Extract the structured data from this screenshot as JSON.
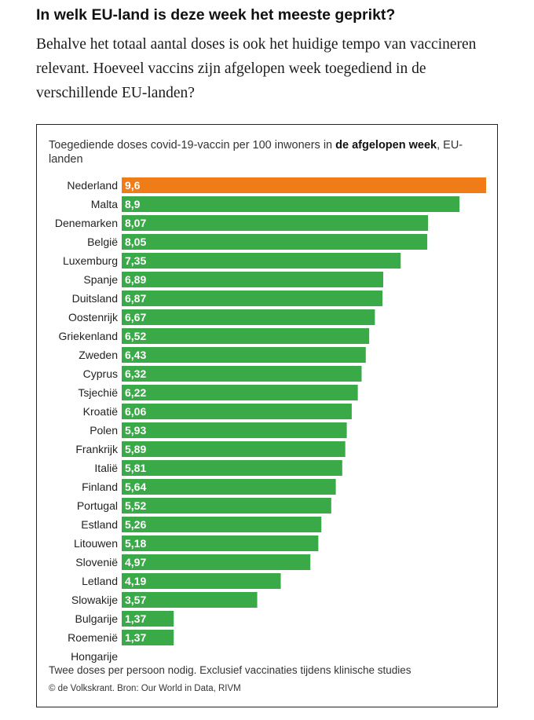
{
  "headline": "In welk EU-land is deze week het meeste geprikt?",
  "intro": "Behalve het totaal aantal doses is ook het huidige tempo van vaccineren relevant. Hoeveel vaccins zijn afgelopen week toegediend in de verschillende EU-landen?",
  "chart_data": {
    "type": "bar",
    "orientation": "horizontal",
    "title_prefix": "Toegediende doses covid-19-vaccin per 100 inwoners in ",
    "title_bold": "de afgelopen week",
    "title_suffix": ", EU-landen",
    "categories": [
      "Nederland",
      "Malta",
      "Denemarken",
      "België",
      "Luxemburg",
      "Spanje",
      "Duitsland",
      "Oostenrijk",
      "Griekenland",
      "Zweden",
      "Cyprus",
      "Tsjechië",
      "Kroatië",
      "Polen",
      "Frankrijk",
      "Italië",
      "Finland",
      "Portugal",
      "Estland",
      "Litouwen",
      "Slovenië",
      "Letland",
      "Slowakije",
      "Bulgarije",
      "Roemenië",
      "Hongarije"
    ],
    "values": [
      9.6,
      8.9,
      8.07,
      8.05,
      7.35,
      6.89,
      6.87,
      6.67,
      6.52,
      6.43,
      6.32,
      6.22,
      6.06,
      5.93,
      5.89,
      5.81,
      5.64,
      5.52,
      5.26,
      5.18,
      4.97,
      4.19,
      3.57,
      1.37,
      1.37,
      null
    ],
    "labels": [
      "9,6",
      "8,9",
      "8,07",
      "8,05",
      "7,35",
      "6,89",
      "6,87",
      "6,67",
      "6,52",
      "6,43",
      "6,32",
      "6,22",
      "6,06",
      "5,93",
      "5,89",
      "5,81",
      "5,64",
      "5,52",
      "5,26",
      "5,18",
      "4,97",
      "4,19",
      "3,57",
      "1,37",
      "1,37",
      ""
    ],
    "highlight": "Nederland",
    "highlight_color": "#f07c17",
    "bar_color": "#3aaa48",
    "label_color": "#ffffff",
    "xlim": [
      0,
      9.6
    ]
  },
  "footnote": "Twee doses per persoon nodig. Exclusief vaccinaties tijdens klinische studies",
  "source": "© de Volkskrant. Bron: Our World in Data, RIVM"
}
